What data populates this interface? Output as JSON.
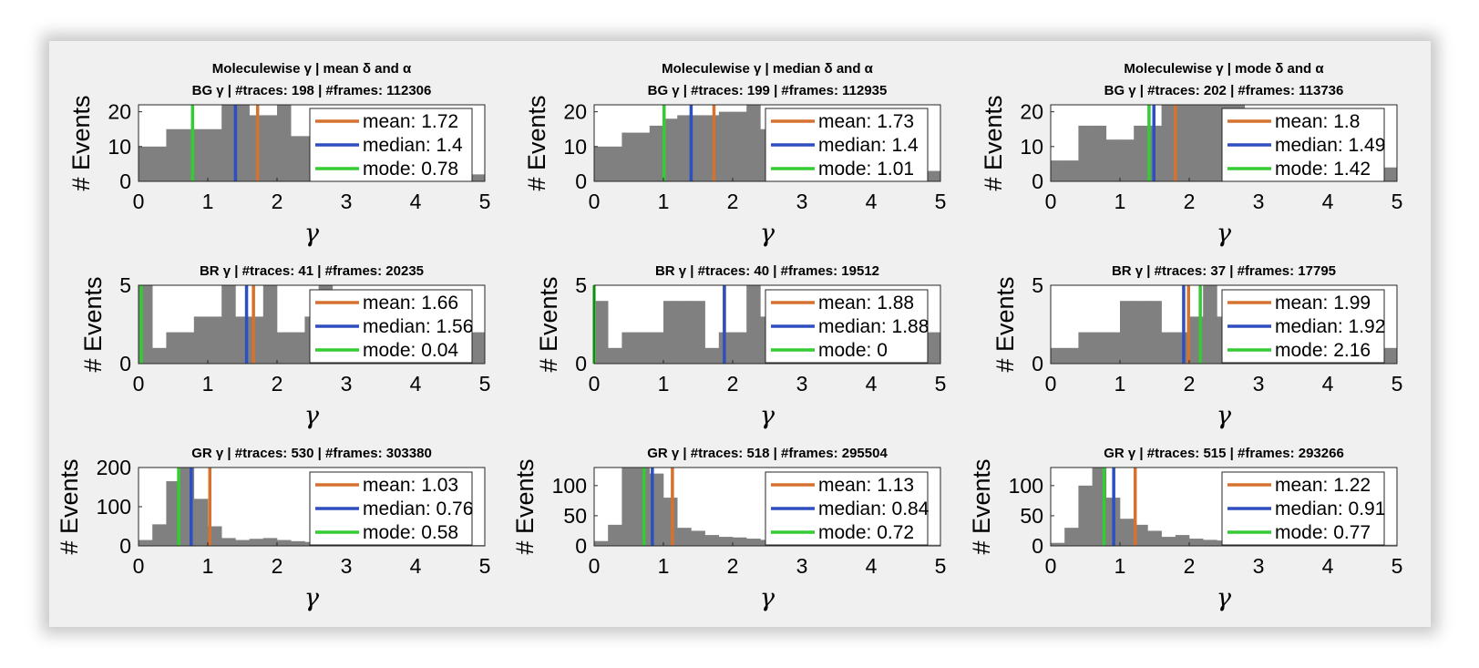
{
  "colors": {
    "bar": "#808080",
    "mean": "#d6722f",
    "median": "#2e4fbf",
    "mode": "#33cc33",
    "axes_bg": "#ffffff",
    "figure_bg": "#f0f0f0"
  },
  "column_titles": [
    "Moleculewise γ | mean δ and α",
    "Moleculewise γ | median δ and α",
    "Moleculewise γ | mode δ and α"
  ],
  "chart_data": [
    {
      "type": "bar",
      "panel": "BG mean",
      "title": "BG γ | #traces: 198 | #frames: 112306",
      "xlabel": "γ",
      "ylabel": "# Events",
      "xlim": [
        0,
        5
      ],
      "ylim": [
        0,
        22
      ],
      "yticks": [
        0,
        10,
        20
      ],
      "bin_width": 0.2,
      "values": [
        10,
        10,
        15,
        15,
        15,
        15,
        22,
        22,
        19,
        19,
        22,
        13,
        13,
        12,
        12,
        11,
        9,
        9,
        6,
        6,
        11,
        11,
        9,
        9,
        2
      ],
      "lines": {
        "mean": 1.72,
        "median": 1.4,
        "mode": 0.78
      },
      "legend": [
        "mean: 1.72",
        "median: 1.4",
        "mode: 0.78"
      ]
    },
    {
      "type": "bar",
      "panel": "BG median",
      "title": "BG γ | #traces: 199 | #frames: 112935",
      "xlabel": "γ",
      "ylabel": "# Events",
      "xlim": [
        0,
        5
      ],
      "ylim": [
        0,
        22
      ],
      "yticks": [
        0,
        10,
        20
      ],
      "bin_width": 0.2,
      "values": [
        10,
        10,
        14,
        14,
        16,
        18,
        19,
        19,
        19,
        20,
        20,
        22,
        15,
        15,
        12,
        11,
        10,
        8,
        6,
        6,
        11,
        11,
        9,
        9,
        3
      ],
      "lines": {
        "mean": 1.73,
        "median": 1.4,
        "mode": 1.01
      },
      "legend": [
        "mean: 1.73",
        "median: 1.4",
        "mode: 1.01"
      ]
    },
    {
      "type": "bar",
      "panel": "BG mode",
      "title": "BG γ | #traces: 202 | #frames: 113736",
      "xlabel": "γ",
      "ylabel": "# Events",
      "xlim": [
        0,
        5
      ],
      "ylim": [
        0,
        22
      ],
      "yticks": [
        0,
        10,
        20
      ],
      "bin_width": 0.2,
      "values": [
        6,
        6,
        16,
        16,
        12,
        12,
        16,
        16,
        22,
        22,
        22,
        22,
        22,
        22,
        15,
        15,
        11,
        11,
        9,
        8,
        8,
        6,
        6,
        4,
        4
      ],
      "lines": {
        "mean": 1.8,
        "median": 1.49,
        "mode": 1.42
      },
      "legend": [
        "mean: 1.8",
        "median: 1.49",
        "mode: 1.42"
      ]
    },
    {
      "type": "bar",
      "panel": "BR mean",
      "title": "BR γ | #traces: 41 | #frames: 20235",
      "xlabel": "γ",
      "ylabel": "# Events",
      "xlim": [
        0,
        5
      ],
      "ylim": [
        0,
        5
      ],
      "yticks": [
        0,
        5
      ],
      "bin_width": 0.2,
      "values": [
        5,
        1,
        2,
        2,
        3,
        3,
        5,
        3,
        3,
        5,
        2,
        2,
        3,
        5,
        3,
        3,
        3,
        3,
        2,
        2,
        2,
        2,
        2,
        2,
        2
      ],
      "lines": {
        "mean": 1.66,
        "median": 1.56,
        "mode": 0.04
      },
      "legend": [
        "mean: 1.66",
        "median: 1.56",
        "mode: 0.04"
      ]
    },
    {
      "type": "bar",
      "panel": "BR median",
      "title": "BR γ | #traces: 40 | #frames: 19512",
      "xlabel": "γ",
      "ylabel": "# Events",
      "xlim": [
        0,
        5
      ],
      "ylim": [
        0,
        5
      ],
      "yticks": [
        0,
        5
      ],
      "bin_width": 0.2,
      "values": [
        4,
        1,
        2,
        2,
        2,
        4,
        4,
        4,
        1,
        2,
        2,
        5,
        3,
        3,
        3,
        3,
        2,
        2,
        2,
        2,
        2,
        2,
        2,
        2,
        2
      ],
      "lines": {
        "mean": 1.88,
        "median": 1.88,
        "mode": 0
      },
      "legend": [
        "mean: 1.88",
        "median: 1.88",
        "mode: 0"
      ]
    },
    {
      "type": "bar",
      "panel": "BR mode",
      "title": "BR γ | #traces: 37 | #frames: 17795",
      "xlabel": "γ",
      "ylabel": "# Events",
      "xlim": [
        0,
        5
      ],
      "ylim": [
        0,
        5
      ],
      "yticks": [
        0,
        5
      ],
      "bin_width": 0.2,
      "values": [
        1,
        1,
        2,
        2,
        2,
        4,
        4,
        4,
        2,
        2,
        3,
        5,
        3,
        3,
        3,
        3,
        2,
        2,
        2,
        2,
        2,
        2,
        1,
        1,
        1
      ],
      "lines": {
        "mean": 1.99,
        "median": 1.92,
        "mode": 2.16
      },
      "legend": [
        "mean: 1.99",
        "median: 1.92",
        "mode: 2.16"
      ]
    },
    {
      "type": "bar",
      "panel": "GR mean",
      "title": "GR γ | #traces: 530 | #frames: 303380",
      "xlabel": "γ",
      "ylabel": "# Events",
      "xlim": [
        0,
        5
      ],
      "ylim": [
        0,
        200
      ],
      "yticks": [
        0,
        100,
        200
      ],
      "bin_width": 0.2,
      "values": [
        15,
        55,
        165,
        200,
        120,
        50,
        20,
        15,
        18,
        20,
        15,
        12,
        10,
        8,
        8,
        6,
        6,
        5,
        5,
        4,
        4,
        3,
        3,
        2,
        2
      ],
      "lines": {
        "mean": 1.03,
        "median": 0.76,
        "mode": 0.58
      },
      "legend": [
        "mean: 1.03",
        "median: 0.76",
        "mode: 0.58"
      ]
    },
    {
      "type": "bar",
      "panel": "GR median",
      "title": "GR γ | #traces: 518 | #frames: 295504",
      "xlabel": "γ",
      "ylabel": "# Events",
      "xlim": [
        0,
        5
      ],
      "ylim": [
        0,
        130
      ],
      "yticks": [
        0,
        50,
        100
      ],
      "bin_width": 0.2,
      "values": [
        8,
        35,
        130,
        130,
        120,
        80,
        30,
        25,
        18,
        15,
        14,
        12,
        10,
        9,
        8,
        7,
        6,
        6,
        5,
        4,
        4,
        3,
        3,
        2,
        2
      ],
      "lines": {
        "mean": 1.13,
        "median": 0.84,
        "mode": 0.72
      },
      "legend": [
        "mean: 1.13",
        "median: 0.84",
        "mode: 0.72"
      ]
    },
    {
      "type": "bar",
      "panel": "GR mode",
      "title": "GR γ | #traces: 515 | #frames: 293266",
      "xlabel": "γ",
      "ylabel": "# Events",
      "xlim": [
        0,
        5
      ],
      "ylim": [
        0,
        130
      ],
      "yticks": [
        0,
        50,
        100
      ],
      "bin_width": 0.2,
      "values": [
        5,
        30,
        100,
        130,
        80,
        45,
        35,
        25,
        15,
        18,
        12,
        10,
        9,
        8,
        7,
        6,
        6,
        5,
        5,
        4,
        4,
        3,
        3,
        2,
        2
      ],
      "lines": {
        "mean": 1.22,
        "median": 0.91,
        "mode": 0.77
      },
      "legend": [
        "mean: 1.22",
        "median: 0.91",
        "mode: 0.77"
      ]
    }
  ]
}
